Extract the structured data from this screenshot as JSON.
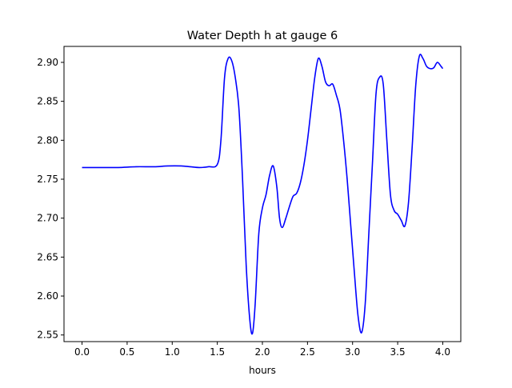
{
  "chart_data": {
    "type": "line",
    "title": "Water Depth h at gauge 6",
    "xlabel": "hours",
    "ylabel": "",
    "xlim": [
      -0.2,
      4.2
    ],
    "ylim": [
      2.5415,
      2.9205
    ],
    "xticks": [
      0.0,
      0.5,
      1.0,
      1.5,
      2.0,
      2.5,
      3.0,
      3.5,
      4.0
    ],
    "xtick_labels": [
      "0.0",
      "0.5",
      "1.0",
      "1.5",
      "2.0",
      "2.5",
      "3.0",
      "3.5",
      "4.0"
    ],
    "yticks": [
      2.55,
      2.6,
      2.65,
      2.7,
      2.75,
      2.8,
      2.85,
      2.9
    ],
    "ytick_labels": [
      "2.55",
      "2.60",
      "2.65",
      "2.70",
      "2.75",
      "2.80",
      "2.85",
      "2.90"
    ],
    "grid": false,
    "series": [
      {
        "color": "#0000ff",
        "x": [
          0.0,
          0.2,
          0.4,
          0.6,
          0.8,
          0.95,
          1.1,
          1.2,
          1.3,
          1.4,
          1.5,
          1.54,
          1.58,
          1.62,
          1.66,
          1.7,
          1.74,
          1.78,
          1.82,
          1.86,
          1.89,
          1.92,
          1.96,
          2.0,
          2.04,
          2.08,
          2.12,
          2.16,
          2.19,
          2.22,
          2.26,
          2.3,
          2.34,
          2.38,
          2.42,
          2.46,
          2.5,
          2.54,
          2.58,
          2.62,
          2.66,
          2.7,
          2.74,
          2.78,
          2.82,
          2.86,
          2.9,
          2.94,
          2.98,
          3.02,
          3.06,
          3.1,
          3.14,
          3.18,
          3.22,
          3.26,
          3.3,
          3.34,
          3.38,
          3.42,
          3.46,
          3.5,
          3.54,
          3.58,
          3.62,
          3.66,
          3.7,
          3.74,
          3.78,
          3.82,
          3.86,
          3.9,
          3.94,
          3.98,
          4.0
        ],
        "values": [
          2.765,
          2.765,
          2.765,
          2.766,
          2.766,
          2.767,
          2.767,
          2.766,
          2.765,
          2.766,
          2.769,
          2.8,
          2.88,
          2.905,
          2.902,
          2.88,
          2.84,
          2.75,
          2.64,
          2.57,
          2.552,
          2.59,
          2.68,
          2.713,
          2.73,
          2.755,
          2.767,
          2.74,
          2.7,
          2.688,
          2.7,
          2.715,
          2.728,
          2.732,
          2.745,
          2.768,
          2.8,
          2.84,
          2.88,
          2.905,
          2.895,
          2.875,
          2.87,
          2.872,
          2.858,
          2.84,
          2.8,
          2.75,
          2.69,
          2.63,
          2.575,
          2.553,
          2.59,
          2.68,
          2.77,
          2.86,
          2.881,
          2.872,
          2.8,
          2.73,
          2.71,
          2.705,
          2.697,
          2.69,
          2.72,
          2.79,
          2.87,
          2.908,
          2.905,
          2.895,
          2.892,
          2.893,
          2.9,
          2.895,
          2.892
        ]
      }
    ]
  }
}
